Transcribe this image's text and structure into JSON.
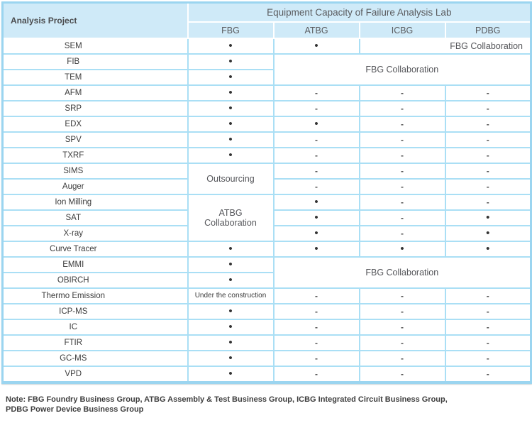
{
  "table": {
    "corner_header": "Analysis Project",
    "title": "Equipment Capacity of Failure Analysis Lab",
    "columns": [
      "FBG",
      "ATBG",
      "ICBG",
      "PDBG"
    ],
    "symbols": {
      "available": "•",
      "not_available": "-"
    },
    "rows": [
      {
        "label": "SEM",
        "cells": [
          {
            "t": "dot"
          },
          {
            "t": "dot"
          },
          {
            "t": "text",
            "text": "FBG Collaboration",
            "colspan": 2,
            "align": "right"
          }
        ]
      },
      {
        "label": "FIB",
        "cells": [
          {
            "t": "dot"
          },
          {
            "t": "text",
            "text": "FBG Collaboration",
            "colspan": 3,
            "rowspan": 2
          }
        ]
      },
      {
        "label": "TEM",
        "cells": [
          {
            "t": "dot"
          }
        ]
      },
      {
        "label": "AFM",
        "cells": [
          {
            "t": "dot"
          },
          {
            "t": "dash"
          },
          {
            "t": "dash"
          },
          {
            "t": "dash"
          }
        ]
      },
      {
        "label": "SRP",
        "cells": [
          {
            "t": "dot"
          },
          {
            "t": "dash"
          },
          {
            "t": "dash"
          },
          {
            "t": "dash"
          }
        ]
      },
      {
        "label": "EDX",
        "cells": [
          {
            "t": "dot"
          },
          {
            "t": "dot"
          },
          {
            "t": "dash"
          },
          {
            "t": "dash"
          }
        ]
      },
      {
        "label": "SPV",
        "cells": [
          {
            "t": "dot"
          },
          {
            "t": "dash"
          },
          {
            "t": "dash"
          },
          {
            "t": "dash"
          }
        ]
      },
      {
        "label": "TXRF",
        "cells": [
          {
            "t": "dot"
          },
          {
            "t": "dash"
          },
          {
            "t": "dash"
          },
          {
            "t": "dash"
          }
        ]
      },
      {
        "label": "SIMS",
        "cells": [
          {
            "t": "text",
            "text": "Outsourcing",
            "rowspan": 2
          },
          {
            "t": "dash"
          },
          {
            "t": "dash"
          },
          {
            "t": "dash"
          }
        ]
      },
      {
        "label": "Auger",
        "cells": [
          {
            "t": "dash"
          },
          {
            "t": "dash"
          },
          {
            "t": "dash"
          }
        ]
      },
      {
        "label": "Ion Milling",
        "cells": [
          {
            "t": "text",
            "text": "ATBG\nCollaboration",
            "rowspan": 3
          },
          {
            "t": "dot"
          },
          {
            "t": "dash"
          },
          {
            "t": "dash"
          }
        ]
      },
      {
        "label": "SAT",
        "cells": [
          {
            "t": "dot"
          },
          {
            "t": "dash"
          },
          {
            "t": "dot"
          }
        ]
      },
      {
        "label": "X-ray",
        "cells": [
          {
            "t": "dot"
          },
          {
            "t": "dash"
          },
          {
            "t": "dot"
          }
        ]
      },
      {
        "label": "Curve Tracer",
        "cells": [
          {
            "t": "dot"
          },
          {
            "t": "dot"
          },
          {
            "t": "dot"
          },
          {
            "t": "dot"
          }
        ]
      },
      {
        "label": "EMMI",
        "cells": [
          {
            "t": "dot"
          },
          {
            "t": "text",
            "text": "FBG Collaboration",
            "colspan": 3,
            "rowspan": 2
          }
        ]
      },
      {
        "label": "OBIRCH",
        "cells": [
          {
            "t": "dot"
          }
        ]
      },
      {
        "label": "Thermo Emission",
        "cells": [
          {
            "t": "text",
            "text": "Under the construction",
            "small": true
          },
          {
            "t": "dash"
          },
          {
            "t": "dash"
          },
          {
            "t": "dash"
          }
        ]
      },
      {
        "label": "ICP-MS",
        "cells": [
          {
            "t": "dot"
          },
          {
            "t": "dash"
          },
          {
            "t": "dash"
          },
          {
            "t": "dash"
          }
        ]
      },
      {
        "label": "IC",
        "cells": [
          {
            "t": "dot"
          },
          {
            "t": "dash"
          },
          {
            "t": "dash"
          },
          {
            "t": "dash"
          }
        ]
      },
      {
        "label": "FTIR",
        "cells": [
          {
            "t": "dot"
          },
          {
            "t": "dash"
          },
          {
            "t": "dash"
          },
          {
            "t": "dash"
          }
        ]
      },
      {
        "label": "GC-MS",
        "cells": [
          {
            "t": "dot"
          },
          {
            "t": "dash"
          },
          {
            "t": "dash"
          },
          {
            "t": "dash"
          }
        ]
      },
      {
        "label": "VPD",
        "cells": [
          {
            "t": "dot"
          },
          {
            "t": "dash"
          },
          {
            "t": "dash"
          },
          {
            "t": "dash"
          }
        ]
      }
    ]
  },
  "note": "Note: FBG Foundry Business Group, ATBG Assembly & Test Business Group, ICBG Integrated Circuit Business Group,\nPDBG Power Device Business Group",
  "colors": {
    "header_background": "#cfeaf8",
    "grid_line": "#aadff5",
    "outer_border": "#9bd5f0",
    "label_text": "#3c3c3c",
    "header_text": "#5a5b5e"
  }
}
